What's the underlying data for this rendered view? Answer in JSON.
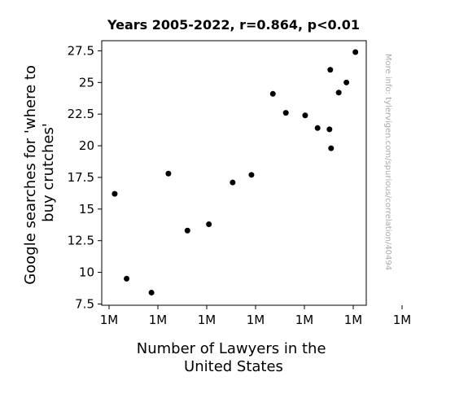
{
  "chart_data": {
    "type": "scatter",
    "title": "Years 2005-2022, r=0.864, p<0.01",
    "xlabel": [
      "Number of Lawyers in the",
      "United States"
    ],
    "ylabel": [
      "Google searches for 'where to",
      "buy crutches'"
    ],
    "watermark": "More info: tylervigen.com/spurious/correlation/40494",
    "x_tick_labels": [
      "1M",
      "1M",
      "1M",
      "1M",
      "1M",
      "1M",
      "1M"
    ],
    "y_ticks": [
      7.5,
      10,
      12.5,
      15,
      17.5,
      20,
      22.5,
      25,
      27.5
    ],
    "y_tick_labels": [
      "7.5",
      "10",
      "12.5",
      "15",
      "17.5",
      "20",
      "22.5",
      "25",
      "27.5"
    ],
    "xlim": [
      0,
      100
    ],
    "ylim": [
      7.4,
      28.3
    ],
    "grid": false,
    "marker_color": "#000000",
    "points": [
      {
        "x": 4.9,
        "y": 16.2
      },
      {
        "x": 9.4,
        "y": 9.5
      },
      {
        "x": 18.8,
        "y": 8.4
      },
      {
        "x": 25.2,
        "y": 17.8
      },
      {
        "x": 32.4,
        "y": 13.3
      },
      {
        "x": 40.5,
        "y": 13.8
      },
      {
        "x": 49.5,
        "y": 17.1
      },
      {
        "x": 56.6,
        "y": 17.7
      },
      {
        "x": 64.7,
        "y": 24.1
      },
      {
        "x": 69.6,
        "y": 22.6
      },
      {
        "x": 76.9,
        "y": 22.4
      },
      {
        "x": 81.6,
        "y": 21.4
      },
      {
        "x": 86.1,
        "y": 21.3
      },
      {
        "x": 86.4,
        "y": 26.0
      },
      {
        "x": 86.7,
        "y": 19.8
      },
      {
        "x": 89.6,
        "y": 24.2
      },
      {
        "x": 92.5,
        "y": 25.0
      },
      {
        "x": 95.9,
        "y": 27.4
      }
    ]
  }
}
